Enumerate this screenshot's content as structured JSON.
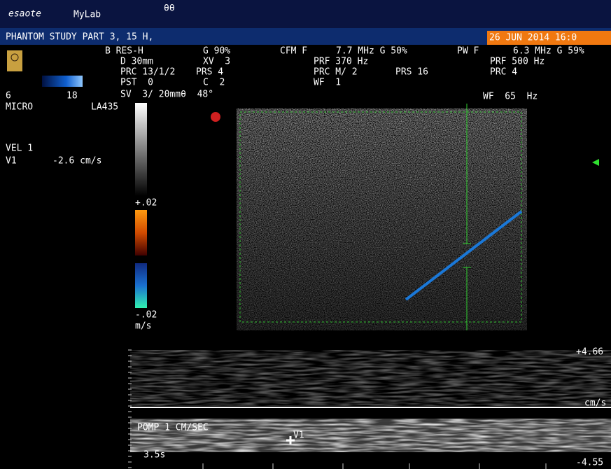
{
  "header": {
    "brand": "esaote",
    "product": "MyLab",
    "indicator": "θθ",
    "study": "PHANTOM STUDY PART 3, 15 H,",
    "datetime": "26 JUN 2014 16:0"
  },
  "parameters": {
    "b_mode": [
      "B RES-H",
      "D 30mm",
      "PRC 13/1/2",
      "PST  0",
      "SV  3/ 20mmθ  48°"
    ],
    "b_mode_gain": [
      "G 90%",
      "XV  3",
      "PRS 4",
      "C  2"
    ],
    "cfm": [
      "CFM F",
      "7.7 MHz G 50%",
      "PRF 370 Hz",
      "PRC M/ 2",
      "PRS 16",
      "WF  1"
    ],
    "pw": [
      "PW F",
      "6.3 MHz G 59%",
      "PRF 500 Hz",
      "PRC 4",
      "WF  65  Hz"
    ]
  },
  "probe": {
    "depth_min": "6",
    "depth_max": "18",
    "preset": "MICRO",
    "model": "LA435"
  },
  "measurement": {
    "title": "VEL 1",
    "label": "V1",
    "value": "-2.6 cm/s"
  },
  "color_scale": {
    "max": "+.02",
    "min": "-.02",
    "unit": "m/s"
  },
  "doppler": {
    "max": "+4.66",
    "unit": "cm/s",
    "min": "-4.55",
    "note": "POMP 1 CM/SEC",
    "sweep": "3.5s",
    "cursor": "V1"
  }
}
